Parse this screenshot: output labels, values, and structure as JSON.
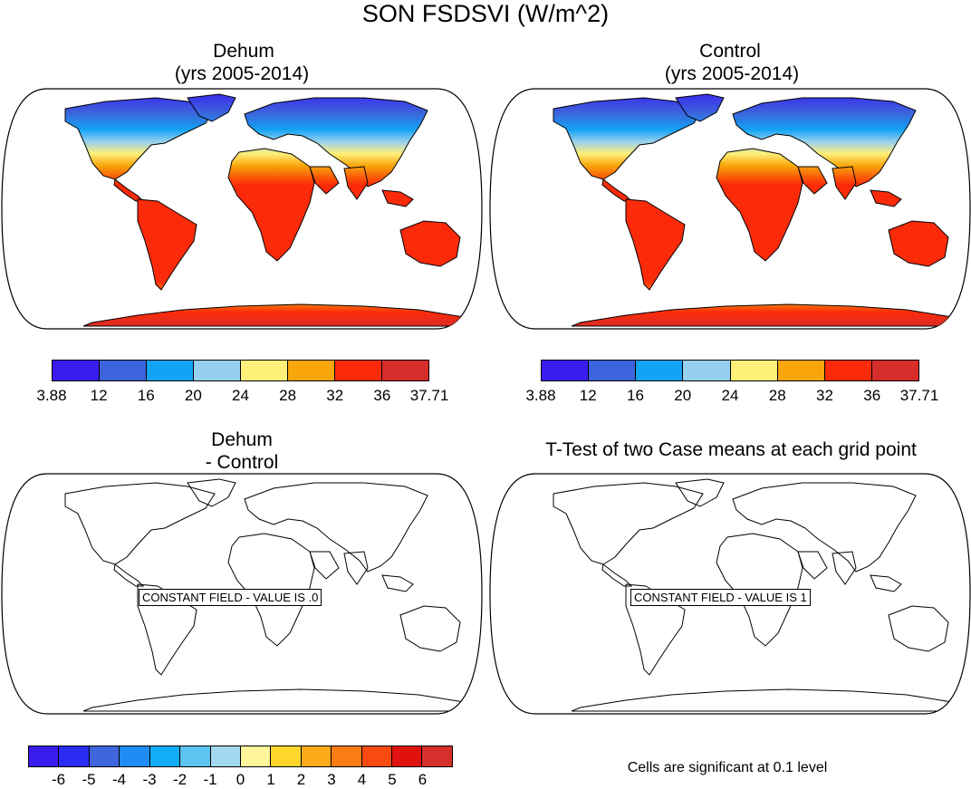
{
  "title": "SON FSDSVI (W/m^2)",
  "panels": {
    "top_left": {
      "title_line1": "Dehum",
      "title_line2": "(yrs 2005-2014)"
    },
    "top_right": {
      "title_line1": "Control",
      "title_line2": "(yrs 2005-2014)"
    },
    "bottom_left": {
      "title_line1": "Dehum",
      "title_line2": "- Control",
      "constant_label": "CONSTANT FIELD - VALUE IS .0"
    },
    "bottom_right": {
      "title_line1": "T-Test of two Case means at each grid point",
      "constant_label": "CONSTANT FIELD - VALUE IS 1"
    }
  },
  "colorbar_top": {
    "colors": [
      "#3a1cf0",
      "#3c64dc",
      "#13a3f5",
      "#96d0ee",
      "#fff07a",
      "#f9a60b",
      "#fb2b0a",
      "#d62d2a"
    ],
    "ticks": [
      "3.88",
      "12",
      "16",
      "20",
      "24",
      "28",
      "32",
      "36",
      "37.71"
    ]
  },
  "colorbar_bottom": {
    "colors": [
      "#3a1cf0",
      "#2a2cf4",
      "#3f66dc",
      "#1e8cf2",
      "#11aef7",
      "#5bc4f0",
      "#a3d8ef",
      "#fff59a",
      "#ffd62a",
      "#fdab1a",
      "#fb7c12",
      "#fb4a10",
      "#e0110e",
      "#d6302c"
    ],
    "ticks": [
      "-6",
      "-5",
      "-4",
      "-3",
      "-2",
      "-1",
      "0",
      "1",
      "2",
      "3",
      "4",
      "5",
      "6"
    ]
  },
  "significance_note": "Cells are significant at 0.1 level",
  "map_colors": {
    "ocean": "#ffffff",
    "coast": "#000000"
  }
}
